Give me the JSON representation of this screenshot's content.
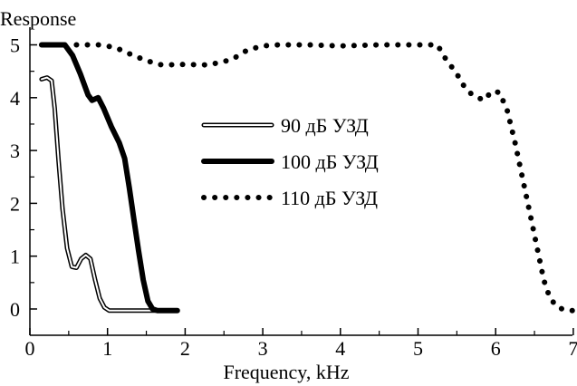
{
  "chart_data": {
    "type": "line",
    "title": "",
    "xlabel": "Frequency, kHz",
    "ylabel": "Response",
    "xlim": [
      0,
      7
    ],
    "ylim": [
      -0.1,
      5.3
    ],
    "xticks": [
      0,
      1,
      2,
      3,
      4,
      5,
      6,
      7
    ],
    "yticks": [
      0,
      1,
      2,
      3,
      4,
      5
    ],
    "grid": false,
    "legend_position": "center",
    "series": [
      {
        "name": "90 дБ УЗД",
        "style": "double",
        "color": "#000000",
        "x": [
          0.15,
          0.22,
          0.28,
          0.32,
          0.37,
          0.42,
          0.48,
          0.54,
          0.6,
          0.66,
          0.72,
          0.78,
          0.84,
          0.9,
          0.96,
          1.02,
          1.08,
          1.5,
          1.9
        ],
        "y": [
          4.35,
          4.38,
          4.32,
          3.8,
          2.8,
          1.9,
          1.15,
          0.8,
          0.78,
          0.95,
          1.02,
          0.95,
          0.55,
          0.2,
          0.03,
          -0.03,
          -0.03,
          -0.03,
          -0.03
        ]
      },
      {
        "name": "100 дБ УЗД",
        "style": "thick",
        "color": "#000000",
        "x": [
          0.15,
          0.3,
          0.45,
          0.55,
          0.65,
          0.75,
          0.8,
          0.88,
          0.95,
          1.05,
          1.15,
          1.22,
          1.28,
          1.34,
          1.4,
          1.46,
          1.52,
          1.58,
          1.64,
          1.9
        ],
        "y": [
          5.0,
          5.0,
          5.0,
          4.8,
          4.45,
          4.05,
          3.95,
          4.0,
          3.8,
          3.45,
          3.15,
          2.85,
          2.3,
          1.7,
          1.1,
          0.55,
          0.15,
          0.0,
          -0.03,
          -0.03
        ]
      },
      {
        "name": "110 дБ УЗД",
        "style": "dotted",
        "color": "#000000",
        "x": [
          0.6,
          0.9,
          1.1,
          1.3,
          1.5,
          1.7,
          2.0,
          2.3,
          2.6,
          2.8,
          3.0,
          3.2,
          3.6,
          4.0,
          4.5,
          5.0,
          5.25,
          5.35,
          5.5,
          5.6,
          5.7,
          5.85,
          5.95,
          6.05,
          6.15,
          6.25,
          6.35,
          6.45,
          6.55,
          6.62,
          6.7,
          6.8,
          6.92,
          7.0
        ],
        "y": [
          5.0,
          5.0,
          4.95,
          4.82,
          4.7,
          4.62,
          4.63,
          4.62,
          4.72,
          4.9,
          4.98,
          5.0,
          5.0,
          4.98,
          5.0,
          5.0,
          5.0,
          4.75,
          4.45,
          4.2,
          4.05,
          3.95,
          4.12,
          4.1,
          3.75,
          3.15,
          2.45,
          1.75,
          1.05,
          0.55,
          0.2,
          0.03,
          -0.03,
          -0.03
        ]
      }
    ]
  }
}
